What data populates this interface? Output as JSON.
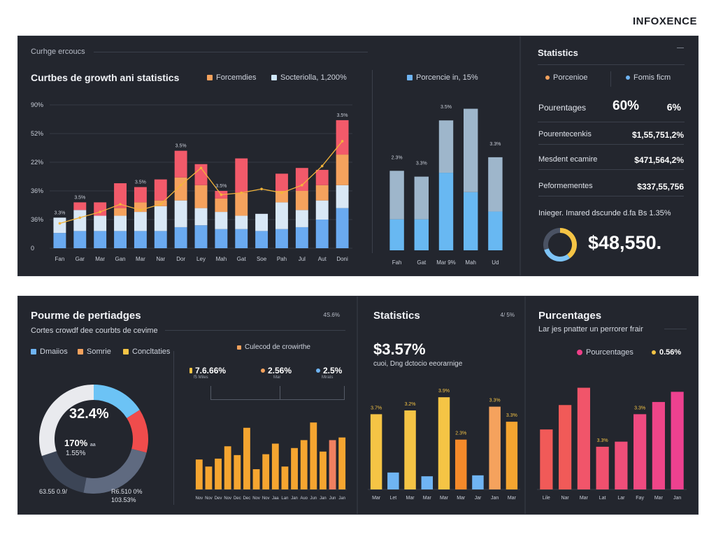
{
  "brand": "INFOXENCE",
  "top_left": {
    "crumb": "Curhge ercoucs",
    "title": "Curtbes de growth ani statistics",
    "legend": [
      {
        "label": "Forcemdies",
        "color": "#f5a25d"
      },
      {
        "label": "Socteriolla, 1,200%",
        "color": "#cfe7fb"
      }
    ],
    "y_ticks": [
      "90%",
      "52%",
      "22%",
      "36%",
      "36%",
      "0"
    ],
    "chart_data": {
      "type": "bar",
      "stacked": true,
      "categories": [
        "Fan",
        "Gar",
        "Mar",
        "Gan",
        "Mar",
        "Nar",
        "Dor",
        "Ley",
        "Mah",
        "Gat",
        "Soe",
        "Pah",
        "Jul",
        "Aut",
        "Doni"
      ],
      "series": [
        {
          "values": [
            8,
            9,
            9,
            9,
            9,
            9,
            11,
            12,
            10,
            10,
            9,
            10,
            11,
            15,
            21
          ],
          "color": "#6aaaf0"
        },
        {
          "values": [
            8,
            11,
            8,
            8,
            10,
            13,
            14,
            9,
            9,
            7,
            9,
            14,
            9,
            10,
            12
          ],
          "color": "#d9e8f6"
        },
        {
          "values": [
            0,
            0,
            0,
            4,
            5,
            3,
            12,
            12,
            7,
            12,
            0,
            6,
            10,
            8,
            16
          ],
          "color": "#f5a25d"
        },
        {
          "values": [
            0,
            4,
            7,
            13,
            8,
            11,
            14,
            11,
            4,
            18,
            0,
            9,
            12,
            8,
            18
          ],
          "color": "#f25a6a"
        }
      ],
      "line": [
        13,
        16,
        19,
        23,
        20,
        23,
        33,
        42,
        28,
        29,
        31,
        29,
        33,
        43,
        56
      ],
      "data_labels": [
        {
          "index": 0,
          "text": "3.3%"
        },
        {
          "index": 1,
          "text": "3.5%"
        },
        {
          "index": 4,
          "text": "3.5%"
        },
        {
          "index": 6,
          "text": "3.5%"
        },
        {
          "index": 8,
          "text": "3.5%"
        },
        {
          "index": 14,
          "text": "3.5%"
        }
      ],
      "ylim": [
        0,
        75
      ]
    }
  },
  "top_mid": {
    "legend_label": "Porcencie in, 15%",
    "legend_color": "#6fb4f3",
    "chart_data": {
      "type": "bar",
      "stacked": true,
      "categories": [
        "Fah",
        "Gat",
        "Mar 9%",
        "Mah",
        "Ud"
      ],
      "series": [
        {
          "values": [
            16,
            16,
            40,
            30,
            20
          ],
          "color": "#68b8f2"
        },
        {
          "values": [
            25,
            22,
            27,
            43,
            28
          ],
          "color": "#9eb6cb"
        }
      ],
      "data_labels": [
        "2.3%",
        "3.3%",
        "3.5%",
        "",
        "3.3%"
      ],
      "ylim": [
        0,
        75
      ]
    }
  },
  "top_right": {
    "title": "Statistics",
    "legend": [
      {
        "label": "Porcenioe",
        "color": "#f5a25d"
      },
      {
        "label": "Fomis ficm",
        "color": "#6fb4f3"
      }
    ],
    "pourcentages_label": "Pourentages",
    "pourcentages_value": "60%",
    "pourcentages_secondary": "6%",
    "rows": [
      {
        "label": "Pourentecenkis",
        "value": "$1,55,751,2%"
      },
      {
        "label": "Mesdent ecamire",
        "value": "$471,564,2%"
      },
      {
        "label": "Peformementes",
        "value": "$337,55,756"
      }
    ],
    "note": "Inieger. Imared dscunde d.fa Bs 1.35%",
    "big_value": "$48,550.",
    "donut": [
      {
        "value": 40,
        "color": "#f5c445"
      },
      {
        "value": 30,
        "color": "#7dc3f6"
      },
      {
        "value": 30,
        "color": "#4a5263"
      }
    ]
  },
  "bottom_left": {
    "title": "Pourme de pertiadges",
    "subtitle": "Cortes crowdf dee courbts de cevime",
    "corner": "4S.6%",
    "legend": [
      {
        "label": "Dmaiios",
        "color": "#6fb4f3"
      },
      {
        "label": "Somrie",
        "color": "#f5a25d"
      },
      {
        "label": "Concltaties",
        "color": "#f5c445"
      }
    ],
    "donut": {
      "center_value": "32.4%",
      "sub_value": "170%",
      "sub_value_suffix": "aa",
      "sub_value2": "1.55%",
      "left_label": "63.55 0.9/",
      "right_label": "R6.510 0%",
      "right_label2": "103.53%",
      "chart_data": {
        "type": "pie",
        "values": [
          16,
          13,
          24,
          17,
          30
        ],
        "colors": [
          "#6cc3f5",
          "#f04c4c",
          "#5f6a80",
          "#3c4556",
          "#e9eaee"
        ]
      }
    },
    "right_chart": {
      "legend_label": "Culecod de crowirthe",
      "legend_color": "#f5a25d",
      "markers": [
        {
          "value": "7.6.66%",
          "sub": "f5 Miles",
          "color": "#f5c445"
        },
        {
          "value": "2.56%",
          "sub": "Mar",
          "color": "#f5a25d"
        },
        {
          "value": "2.5%",
          "sub": "Mirats",
          "color": "#6fb4f3"
        }
      ],
      "chart_data": {
        "type": "bar",
        "categories": [
          "Nov",
          "Nov",
          "Dev",
          "Nov",
          "Dec",
          "Dec",
          "Nov",
          "Nov",
          "Jaa",
          "Lan",
          "Jan",
          "Auo",
          "Jun",
          "Jan",
          "Jun",
          "Jan"
        ],
        "values": [
          34,
          26,
          35,
          49,
          39,
          70,
          23,
          40,
          52,
          26,
          47,
          56,
          76,
          43,
          56,
          59
        ],
        "colors": [
          "#f5a530",
          "#f5a530",
          "#f5a530",
          "#f5a530",
          "#f5a530",
          "#f5a530",
          "#f5a530",
          "#f5a530",
          "#f5a530",
          "#f5a530",
          "#f5a530",
          "#f5a530",
          "#f5a530",
          "#f5a530",
          "#f08060",
          "#f5a530"
        ],
        "ylim": [
          0,
          100
        ]
      }
    }
  },
  "bottom_mid": {
    "title": "Statistics",
    "corner": "4/ 5%",
    "big_value": "$3.57%",
    "sub": "cuoi, Dng dctocio eeorarnige",
    "chart_data": {
      "type": "bar",
      "categories": [
        "Mar",
        "Let",
        "Mar",
        "Mar",
        "Mar",
        "Mar",
        "Jar",
        "Jan",
        "Mar"
      ],
      "values": [
        80,
        18,
        84,
        14,
        98,
        53,
        15,
        88,
        72
      ],
      "colors": [
        "#f5c445",
        "#6fb4f3",
        "#f5c445",
        "#6fb4f3",
        "#f5c445",
        "#f58a2a",
        "#6fb4f3",
        "#f5a25d",
        "#f5a530"
      ],
      "data_labels": [
        "3.7%",
        "",
        "3.2%",
        "",
        "3.9%",
        "2.3%",
        "",
        "3.3%",
        "3.3%"
      ],
      "ylim": [
        0,
        110
      ]
    }
  },
  "bottom_right": {
    "title": "Purcentages",
    "subtitle": "Lar jes pnatter un perrorer frair",
    "legend": [
      {
        "label": "Pourcentages",
        "color": "#ef3f88"
      },
      {
        "label": "0.56%",
        "color": "#f5c445"
      }
    ],
    "chart_data": {
      "type": "bar",
      "categories": [
        "Lile",
        "Nar",
        "Mar",
        "Lat",
        "Lar",
        "Fay",
        "Mar",
        "Jan"
      ],
      "values": [
        59,
        83,
        100,
        42,
        47,
        74,
        86,
        96
      ],
      "data_labels": [
        "",
        "",
        "",
        "3.3%",
        "",
        "3.3%",
        "",
        ""
      ],
      "colors": [
        "#f15a58",
        "#f15a58",
        "#f1556a",
        "#f0506e",
        "#ef4e79",
        "#ef4a80",
        "#ee4588",
        "#ed418f"
      ],
      "ylim": [
        0,
        110
      ]
    }
  }
}
